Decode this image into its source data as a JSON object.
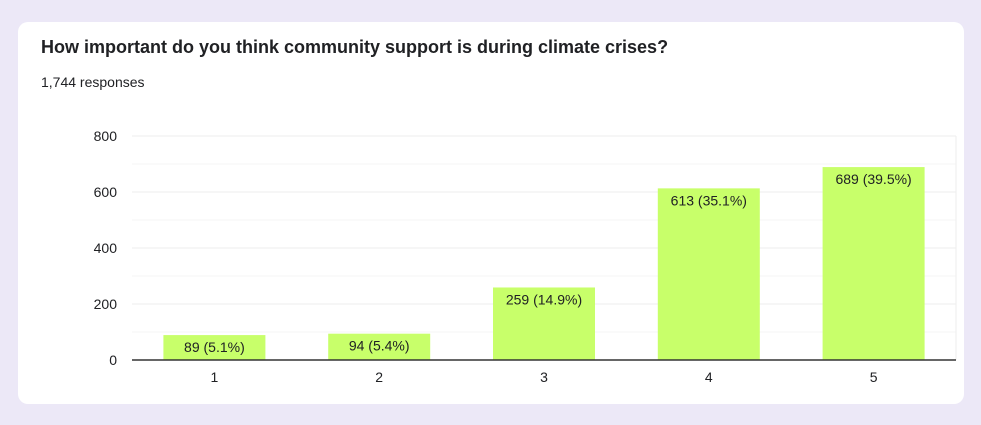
{
  "question": {
    "title": "How important do you think community support is during climate crises?",
    "responses": "1,744 responses"
  },
  "colors": {
    "bar": "#c8ff6a",
    "grid": "#eeeeee",
    "axis": "#333333",
    "text": "#202124",
    "page_bg": "#ece8f7"
  },
  "chart_data": {
    "type": "bar",
    "title": "How important do you think community support is during climate crises?",
    "categories": [
      "1",
      "2",
      "3",
      "4",
      "5"
    ],
    "values": [
      89,
      94,
      259,
      613,
      689
    ],
    "data_labels": [
      "89 (5.1%)",
      "94 (5.4%)",
      "259 (14.9%)",
      "613 (35.1%)",
      "689 (39.5%)"
    ],
    "xlabel": "",
    "ylabel": "",
    "ylim": [
      0,
      800
    ],
    "yticks": [
      0,
      200,
      400,
      600,
      800
    ],
    "grid": true,
    "legend": "none"
  }
}
